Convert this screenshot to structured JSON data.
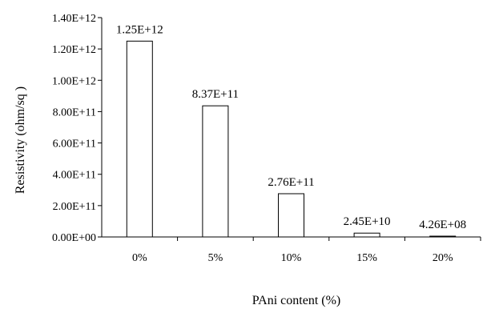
{
  "chart_data": {
    "type": "bar",
    "title": "",
    "xlabel": "PAni content (%)",
    "ylabel": "Resistivity (ohm/sq )",
    "categories": [
      "0%",
      "5%",
      "10%",
      "15%",
      "20%"
    ],
    "values": [
      1250000000000.0,
      837000000000.0,
      276000000000.0,
      24500000000.0,
      426000000.0
    ],
    "data_labels": [
      "1.25E+12",
      "8.37E+11",
      "2.76E+11",
      "2.45E+10",
      "4.26E+08"
    ],
    "ylim": [
      0,
      1400000000000.0
    ],
    "yticks": [
      0,
      200000000000.0,
      400000000000.0,
      600000000000.0,
      800000000000.0,
      1000000000000.0,
      1200000000000.0,
      1400000000000.0
    ],
    "ytick_labels": [
      "0.00E+00",
      "2.00E+11",
      "4.00E+11",
      "6.00E+11",
      "8.00E+11",
      "1.00E+12",
      "1.20E+12",
      "1.40E+12"
    ],
    "grid": false,
    "legend": "none",
    "colors": {
      "bar_fill": "#ffffff",
      "bar_stroke": "#000000",
      "axis": "#000000"
    }
  }
}
